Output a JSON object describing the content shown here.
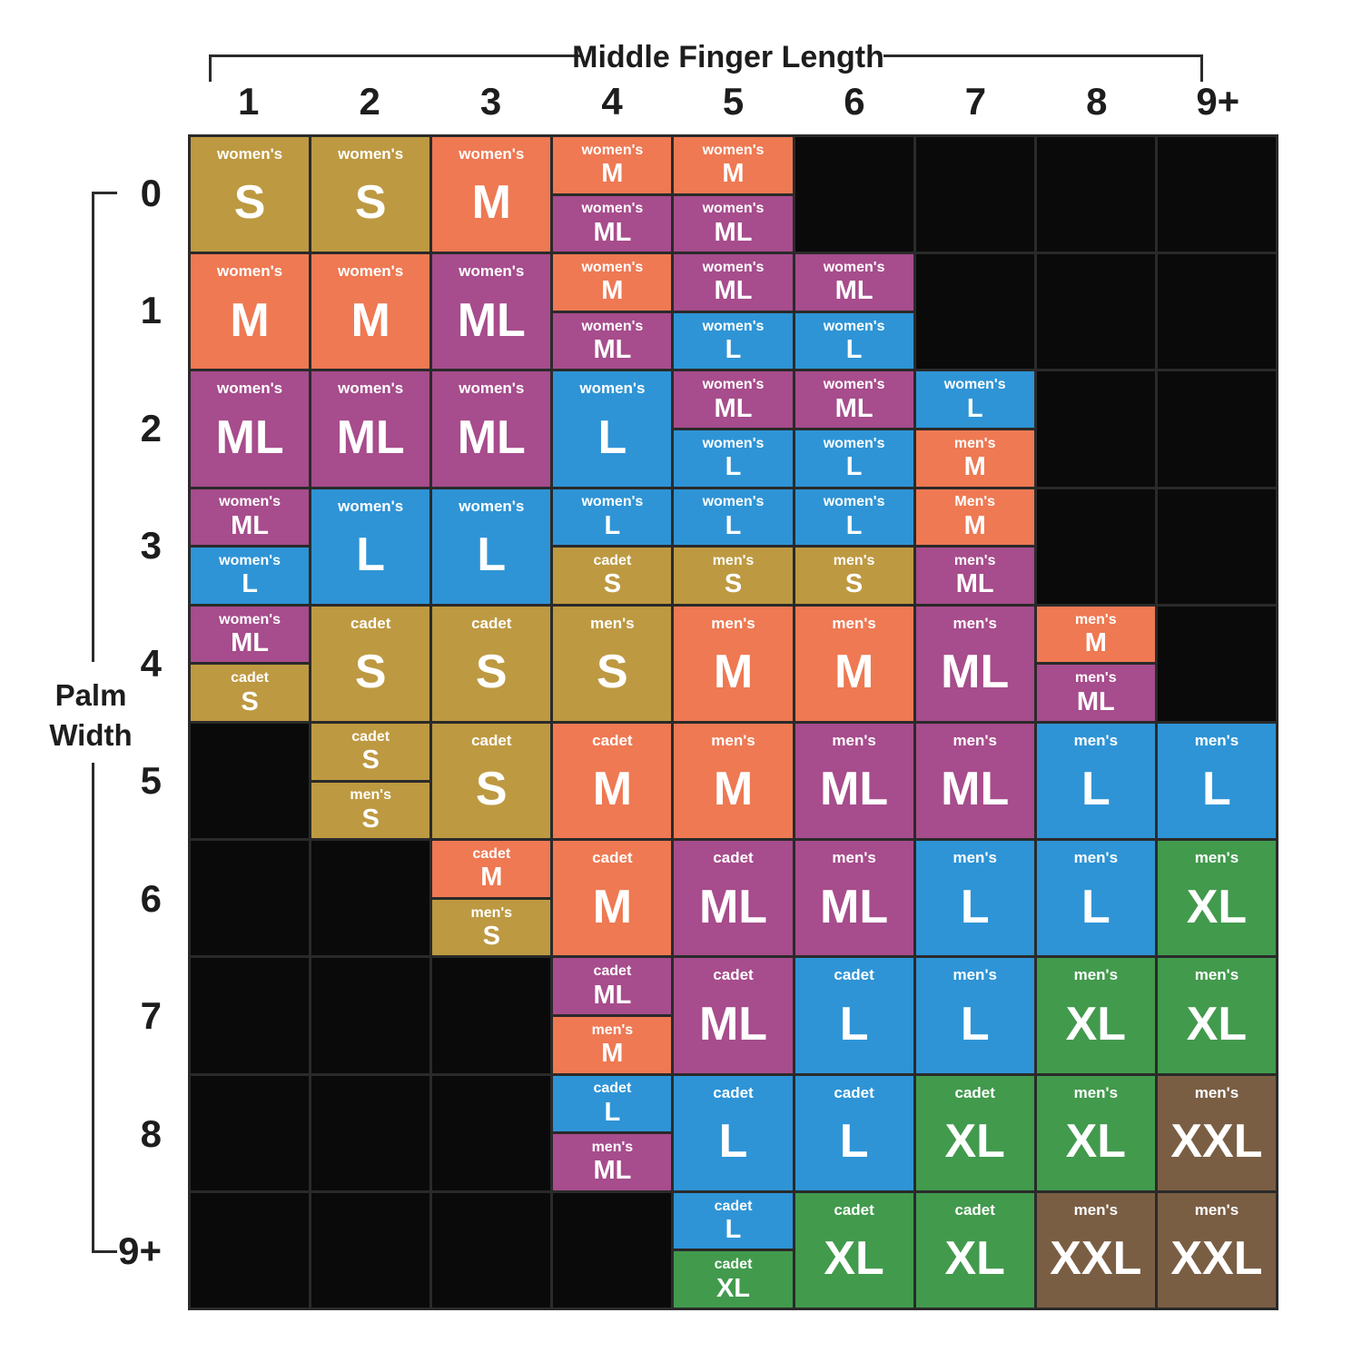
{
  "chart_data": {
    "type": "heatmap",
    "title": "Middle Finger Length",
    "xlabel": "Middle Finger Length",
    "ylabel": "Palm Width",
    "ylabel_lines": [
      "Palm",
      "Width"
    ],
    "x_ticks": [
      "1",
      "2",
      "3",
      "4",
      "5",
      "6",
      "7",
      "8",
      "9+"
    ],
    "y_ticks": [
      "0",
      "1",
      "2",
      "3",
      "4",
      "5",
      "6",
      "7",
      "8",
      "9+"
    ],
    "legend_position": "none",
    "grid": "on",
    "colors": {
      "gold": "#bd9941",
      "orange": "#ee7953",
      "purple": "#a74c8c",
      "blue": "#2e94d6",
      "green": "#429a4d",
      "brown": "#7a5e44",
      "empty": "#0a0a0a",
      "gridline": "#2a2a2a",
      "ink": "#1d1d1d",
      "cell_text": "#ffffff"
    },
    "rows": [
      [
        {
          "color": "gold",
          "label": "women's",
          "size": "S"
        },
        {
          "color": "gold",
          "label": "women's",
          "size": "S"
        },
        {
          "color": "orange",
          "label": "women's",
          "size": "M"
        },
        {
          "split": [
            {
              "color": "orange",
              "label": "women's",
              "size": "M"
            },
            {
              "color": "purple",
              "label": "women's",
              "size": "ML"
            }
          ]
        },
        {
          "split": [
            {
              "color": "orange",
              "label": "women's",
              "size": "M"
            },
            {
              "color": "purple",
              "label": "women's",
              "size": "ML"
            }
          ]
        },
        null,
        null,
        null,
        null
      ],
      [
        {
          "color": "orange",
          "label": "women's",
          "size": "M"
        },
        {
          "color": "orange",
          "label": "women's",
          "size": "M"
        },
        {
          "color": "purple",
          "label": "women's",
          "size": "ML"
        },
        {
          "split": [
            {
              "color": "orange",
              "label": "women's",
              "size": "M"
            },
            {
              "color": "purple",
              "label": "women's",
              "size": "ML"
            }
          ]
        },
        {
          "split": [
            {
              "color": "purple",
              "label": "women's",
              "size": "ML"
            },
            {
              "color": "blue",
              "label": "women's",
              "size": "L"
            }
          ]
        },
        {
          "split": [
            {
              "color": "purple",
              "label": "women's",
              "size": "ML"
            },
            {
              "color": "blue",
              "label": "women's",
              "size": "L"
            }
          ]
        },
        null,
        null,
        null
      ],
      [
        {
          "color": "purple",
          "label": "women's",
          "size": "ML"
        },
        {
          "color": "purple",
          "label": "women's",
          "size": "ML"
        },
        {
          "color": "purple",
          "label": "women's",
          "size": "ML"
        },
        {
          "color": "blue",
          "label": "women's",
          "size": "L"
        },
        {
          "split": [
            {
              "color": "purple",
              "label": "women's",
              "size": "ML"
            },
            {
              "color": "blue",
              "label": "women's",
              "size": "L"
            }
          ]
        },
        {
          "split": [
            {
              "color": "purple",
              "label": "women's",
              "size": "ML"
            },
            {
              "color": "blue",
              "label": "women's",
              "size": "L"
            }
          ]
        },
        {
          "split": [
            {
              "color": "blue",
              "label": "women's",
              "size": "L"
            },
            {
              "color": "orange",
              "label": "men's",
              "size": "M"
            }
          ]
        },
        null,
        null
      ],
      [
        {
          "split": [
            {
              "color": "purple",
              "label": "women's",
              "size": "ML"
            },
            {
              "color": "blue",
              "label": "women's",
              "size": "L"
            }
          ]
        },
        {
          "color": "blue",
          "label": "women's",
          "size": "L"
        },
        {
          "color": "blue",
          "label": "women's",
          "size": "L"
        },
        {
          "split": [
            {
              "color": "blue",
              "label": "women's",
              "size": "L"
            },
            {
              "color": "gold",
              "label": "cadet",
              "size": "S"
            }
          ]
        },
        {
          "split": [
            {
              "color": "blue",
              "label": "women's",
              "size": "L"
            },
            {
              "color": "gold",
              "label": "men's",
              "size": "S"
            }
          ]
        },
        {
          "split": [
            {
              "color": "blue",
              "label": "women's",
              "size": "L"
            },
            {
              "color": "gold",
              "label": "men's",
              "size": "S"
            }
          ]
        },
        {
          "split": [
            {
              "color": "orange",
              "label": "Men's",
              "size": "M"
            },
            {
              "color": "purple",
              "label": "men's",
              "size": "ML"
            }
          ]
        },
        null,
        null
      ],
      [
        {
          "split": [
            {
              "color": "purple",
              "label": "women's",
              "size": "ML"
            },
            {
              "color": "gold",
              "label": "cadet",
              "size": "S"
            }
          ]
        },
        {
          "color": "gold",
          "label": "cadet",
          "size": "S"
        },
        {
          "color": "gold",
          "label": "cadet",
          "size": "S"
        },
        {
          "color": "gold",
          "label": "men's",
          "size": "S"
        },
        {
          "color": "orange",
          "label": "men's",
          "size": "M"
        },
        {
          "color": "orange",
          "label": "men's",
          "size": "M"
        },
        {
          "color": "purple",
          "label": "men's",
          "size": "ML"
        },
        {
          "split": [
            {
              "color": "orange",
              "label": "men's",
              "size": "M"
            },
            {
              "color": "purple",
              "label": "men's",
              "size": "ML"
            }
          ]
        },
        null
      ],
      [
        null,
        {
          "split": [
            {
              "color": "gold",
              "label": "cadet",
              "size": "S"
            },
            {
              "color": "gold",
              "label": "men's",
              "size": "S"
            }
          ]
        },
        {
          "color": "gold",
          "label": "cadet",
          "size": "S"
        },
        {
          "color": "orange",
          "label": "cadet",
          "size": "M"
        },
        {
          "color": "orange",
          "label": "men's",
          "size": "M"
        },
        {
          "color": "purple",
          "label": "men's",
          "size": "ML"
        },
        {
          "color": "purple",
          "label": "men's",
          "size": "ML"
        },
        {
          "color": "blue",
          "label": "men's",
          "size": "L"
        },
        {
          "color": "blue",
          "label": "men's",
          "size": "L"
        }
      ],
      [
        null,
        null,
        {
          "split": [
            {
              "color": "orange",
              "label": "cadet",
              "size": "M"
            },
            {
              "color": "gold",
              "label": "men's",
              "size": "S"
            }
          ]
        },
        {
          "color": "orange",
          "label": "cadet",
          "size": "M"
        },
        {
          "color": "purple",
          "label": "cadet",
          "size": "ML"
        },
        {
          "color": "purple",
          "label": "men's",
          "size": "ML"
        },
        {
          "color": "blue",
          "label": "men's",
          "size": "L"
        },
        {
          "color": "blue",
          "label": "men's",
          "size": "L"
        },
        {
          "color": "green",
          "label": "men's",
          "size": "XL"
        }
      ],
      [
        null,
        null,
        null,
        {
          "split": [
            {
              "color": "purple",
              "label": "cadet",
              "size": "ML"
            },
            {
              "color": "orange",
              "label": "men's",
              "size": "M"
            }
          ]
        },
        {
          "color": "purple",
          "label": "cadet",
          "size": "ML"
        },
        {
          "color": "blue",
          "label": "cadet",
          "size": "L"
        },
        {
          "color": "blue",
          "label": "men's",
          "size": "L"
        },
        {
          "color": "green",
          "label": "men's",
          "size": "XL"
        },
        {
          "color": "green",
          "label": "men's",
          "size": "XL"
        }
      ],
      [
        null,
        null,
        null,
        {
          "split": [
            {
              "color": "blue",
              "label": "cadet",
              "size": "L"
            },
            {
              "color": "purple",
              "label": "men's",
              "size": "ML"
            }
          ]
        },
        {
          "color": "blue",
          "label": "cadet",
          "size": "L"
        },
        {
          "color": "blue",
          "label": "cadet",
          "size": "L"
        },
        {
          "color": "green",
          "label": "cadet",
          "size": "XL"
        },
        {
          "color": "green",
          "label": "men's",
          "size": "XL"
        },
        {
          "color": "brown",
          "label": "men's",
          "size": "XXL"
        }
      ],
      [
        null,
        null,
        null,
        null,
        {
          "split": [
            {
              "color": "blue",
              "label": "cadet",
              "size": "L"
            },
            {
              "color": "green",
              "label": "cadet",
              "size": "XL"
            }
          ]
        },
        {
          "color": "green",
          "label": "cadet",
          "size": "XL"
        },
        {
          "color": "green",
          "label": "cadet",
          "size": "XL"
        },
        {
          "color": "brown",
          "label": "men's",
          "size": "XXL"
        },
        {
          "color": "brown",
          "label": "men's",
          "size": "XXL"
        }
      ]
    ]
  }
}
